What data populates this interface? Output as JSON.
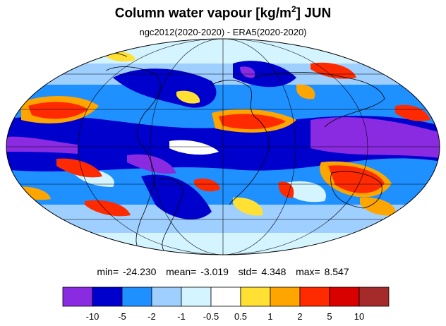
{
  "title": {
    "main": "Column water vapour [kg/m",
    "superscript": "2",
    "suffix": "] JUN"
  },
  "subtitle": "ngc2012(2020-2020) - ERA5(2020-2020)",
  "stats": {
    "min_label": "min=",
    "min_value": "-24.230",
    "mean_label": "mean=",
    "mean_value": "-3.019",
    "std_label": "std=",
    "std_value": "4.348",
    "max_label": "max=",
    "max_value": "8.547"
  },
  "colorbar": {
    "colors": [
      "#8a2be2",
      "#0000cd",
      "#1e90ff",
      "#9fcfff",
      "#d4f4ff",
      "#ffffff",
      "#ffe033",
      "#ffa500",
      "#ff2a00",
      "#d90000",
      "#a52a2a"
    ],
    "tick_labels": [
      "-10",
      "-5",
      "-2",
      "-1",
      "-0.5",
      "0.5",
      "1",
      "2",
      "5",
      "10"
    ]
  }
}
